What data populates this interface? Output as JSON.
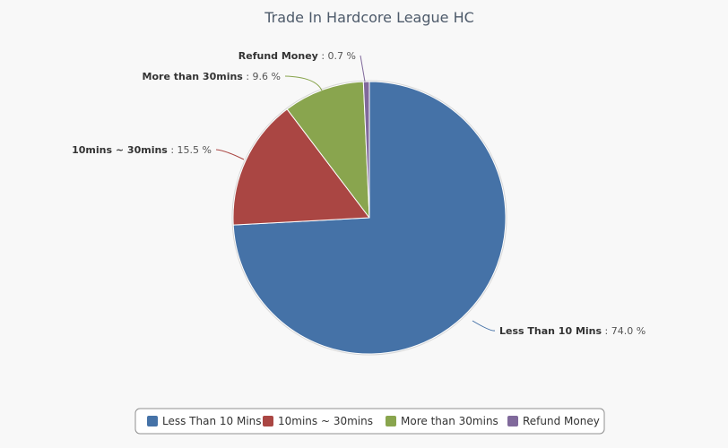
{
  "chart_data": {
    "type": "pie",
    "title": "Trade In Hardcore League HC",
    "categories": [
      "Less Than 10 Mins",
      "10mins ~ 30mins",
      "More than 30mins",
      "Refund Money"
    ],
    "values": [
      74.0,
      15.5,
      9.6,
      0.7
    ],
    "value_labels": [
      "74.0 %",
      "15.5 %",
      "9.6 %",
      "0.7 %"
    ],
    "colors": [
      "#4572a7",
      "#aa4643",
      "#89a54e",
      "#80699b"
    ],
    "legend_position": "bottom-center"
  }
}
